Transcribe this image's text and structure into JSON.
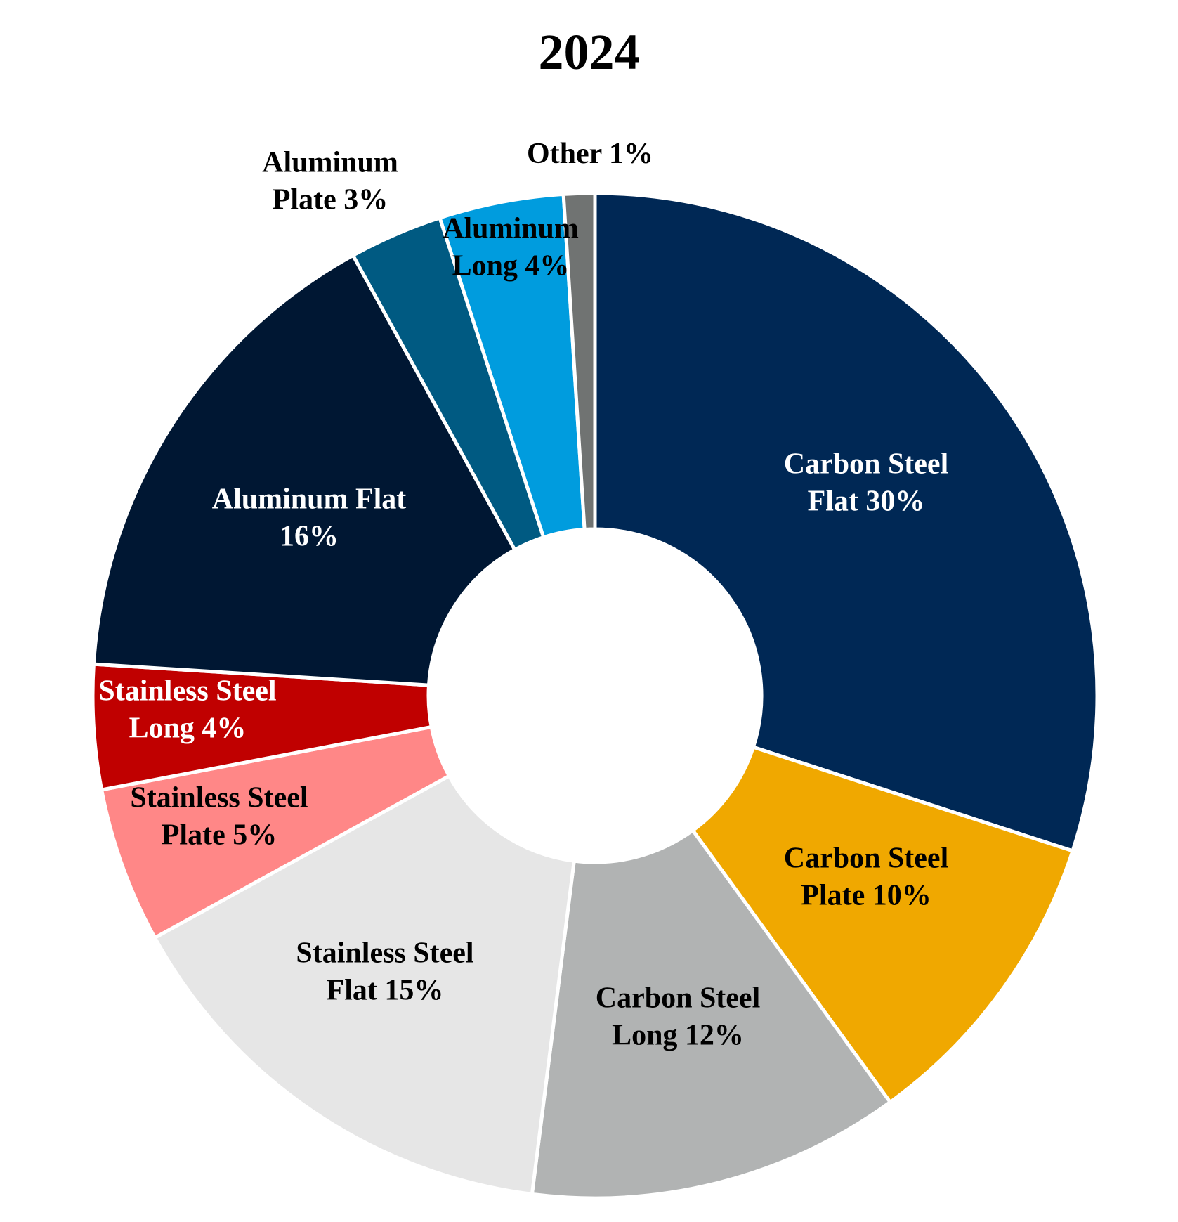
{
  "chart_data": {
    "type": "pie",
    "title": "2024",
    "unit": "%",
    "slices": [
      {
        "label_lines": [
          "Carbon Steel",
          "Flat 30%"
        ],
        "value": 30,
        "color": "#002855",
        "text_color": "#ffffff"
      },
      {
        "label_lines": [
          "Carbon Steel",
          "Plate 10%"
        ],
        "value": 10,
        "color": "#F0A800",
        "text_color": "#000000"
      },
      {
        "label_lines": [
          "Carbon Steel",
          "Long 12%"
        ],
        "value": 12,
        "color": "#B1B3B3",
        "text_color": "#000000"
      },
      {
        "label_lines": [
          "Stainless Steel",
          "Flat 15%"
        ],
        "value": 15,
        "color": "#E6E6E6",
        "text_color": "#000000"
      },
      {
        "label_lines": [
          "Stainless Steel",
          "Plate 5%"
        ],
        "value": 5,
        "color": "#FF8787",
        "text_color": "#000000"
      },
      {
        "label_lines": [
          "Stainless Steel",
          "Long  4%"
        ],
        "value": 4,
        "color": "#C00000",
        "text_color": "#ffffff"
      },
      {
        "label_lines": [
          "Aluminum Flat",
          "16%"
        ],
        "value": 16,
        "color": "#001733",
        "text_color": "#ffffff"
      },
      {
        "label_lines": [
          "Aluminum",
          "Plate 3%"
        ],
        "value": 3,
        "color": "#005A82",
        "text_color": "#000000"
      },
      {
        "label_lines": [
          "Aluminum",
          "Long 4%"
        ],
        "value": 4,
        "color": "#009CDE",
        "text_color": "#000000"
      },
      {
        "label_lines": [
          "Other 1%"
        ],
        "value": 1,
        "color": "#707372",
        "text_color": "#000000"
      }
    ]
  }
}
